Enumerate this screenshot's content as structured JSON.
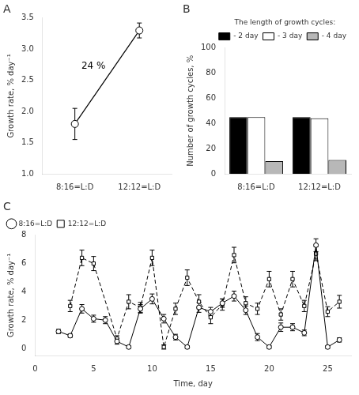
{
  "chart_data": [
    {
      "type": "line",
      "title": "A",
      "categories": [
        "8:16=L:D",
        "12:12=L:D"
      ],
      "values": [
        1.8,
        3.3
      ],
      "errors": [
        0.25,
        0.12
      ],
      "color": "black",
      "marker": "circle",
      "line_style": "solid",
      "ylabel": "Growth rate, % day⁻¹",
      "ylim": [
        1.0,
        3.5
      ],
      "yticks": [
        {
          "value": 1.0,
          "label": "1.0"
        },
        1.5,
        {
          "value": 2.0,
          "label": "2.0"
        },
        2.5,
        {
          "value": 3.0,
          "label": "3.0"
        },
        3.5
      ],
      "annotations": [
        "24 %"
      ],
      "grid": false
    },
    {
      "type": "bar",
      "title": "B",
      "categories": [
        "8:16=L:D",
        "12:12=L:D"
      ],
      "series": [
        {
          "name": "- 2 day",
          "color": "black",
          "values": [
            45,
            45
          ]
        },
        {
          "name": "- 3 day",
          "color": "white",
          "values": [
            45,
            44
          ]
        },
        {
          "name": "- 4 day",
          "color": "#b8b8b8",
          "values": [
            10,
            11
          ]
        }
      ],
      "ylabel": "Number of growth cycles, %",
      "ylim": [
        0,
        100
      ],
      "yticks": [
        0,
        20,
        40,
        60,
        80,
        100
      ],
      "legend_title": "The length of growth cycles:",
      "legend": "upper right",
      "grid": false
    },
    {
      "type": "line",
      "title": "C",
      "series": [
        {
          "name": "8:16=L:D",
          "color": "black",
          "marker": "circle",
          "line_style": "solid",
          "x": [
            2,
            3,
            4,
            5,
            6,
            7,
            8,
            9,
            10,
            11,
            12,
            13,
            14,
            15,
            16,
            17,
            18,
            19,
            20,
            21,
            22,
            23,
            24,
            25,
            26
          ],
          "values": [
            1.2,
            0.9,
            2.8,
            2.1,
            2.0,
            0.5,
            0.1,
            2.8,
            3.5,
            2.1,
            0.8,
            0.1,
            2.9,
            2.6,
            3.2,
            3.7,
            2.7,
            0.8,
            0.1,
            1.5,
            1.5,
            1.1,
            7.3,
            0.1,
            0.6
          ],
          "errors": [
            0.15,
            0.12,
            0.3,
            0.25,
            0.25,
            0.2,
            0.1,
            0.3,
            0.35,
            0.3,
            0.2,
            0.1,
            0.35,
            0.3,
            0.3,
            0.35,
            0.3,
            0.25,
            0.1,
            0.3,
            0.25,
            0.2,
            0.45,
            0.1,
            0.15
          ]
        },
        {
          "name": "12:12=L:D",
          "color": "black",
          "marker": "square",
          "line_style": "dashed",
          "x": [
            3,
            4,
            5,
            7,
            8,
            9,
            10,
            11,
            12,
            13,
            14,
            15,
            16,
            17,
            18,
            19,
            20,
            21,
            22,
            23,
            24,
            25,
            26
          ],
          "values": [
            3.0,
            6.4,
            6.0,
            0.7,
            3.3,
            2.9,
            6.4,
            0.1,
            2.8,
            5.0,
            3.3,
            2.2,
            3.1,
            6.6,
            3.2,
            2.8,
            4.9,
            2.4,
            4.9,
            3.0,
            6.7,
            2.6,
            3.3
          ],
          "errors": [
            0.4,
            0.55,
            0.5,
            0.2,
            0.5,
            0.35,
            0.55,
            0.15,
            0.4,
            0.55,
            0.5,
            0.45,
            0.4,
            0.55,
            0.45,
            0.4,
            0.55,
            0.4,
            0.55,
            0.4,
            0.5,
            0.35,
            0.45
          ]
        }
      ],
      "xlabel": "Time, day",
      "ylabel": "Growth rate, % day⁻¹",
      "xlim": [
        0,
        27
      ],
      "xticks": [
        0,
        5,
        10,
        15,
        20,
        25
      ],
      "ylim": [
        -0.5,
        8.0
      ],
      "yticks": [
        0,
        2,
        4,
        6,
        8
      ],
      "legend": "upper left",
      "grid": false
    }
  ]
}
